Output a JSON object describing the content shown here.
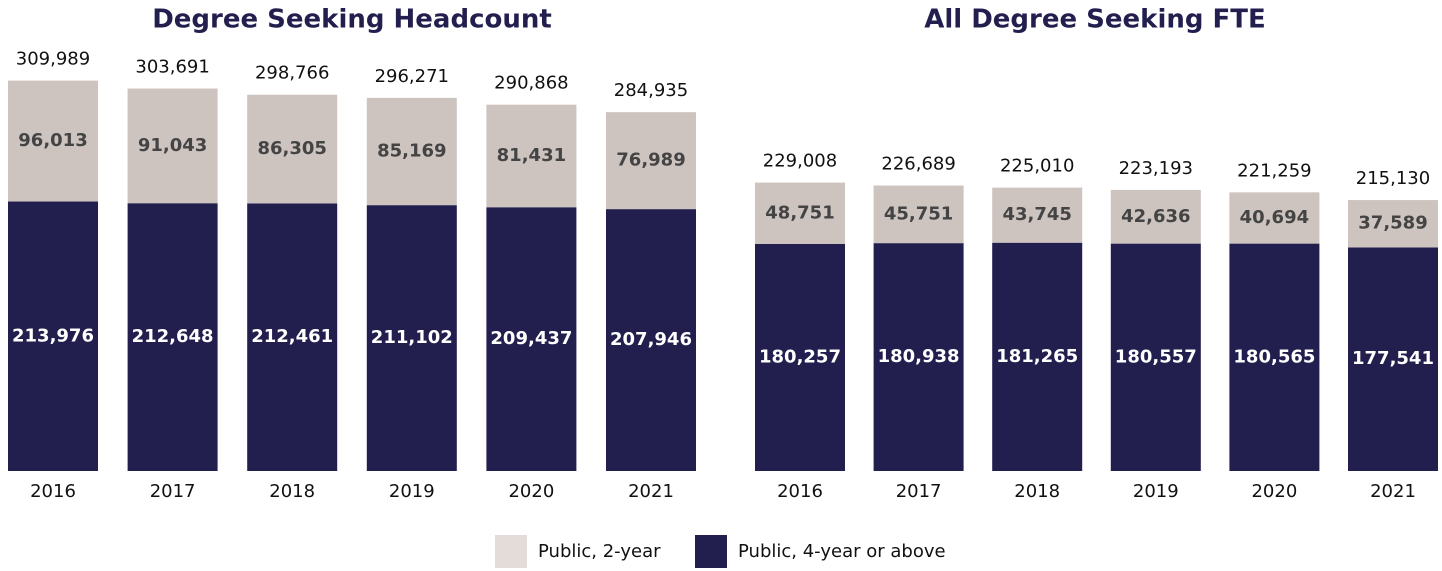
{
  "chart_data": [
    {
      "type": "stacked_bar",
      "title": "Degree Seeking Headcount",
      "categories": [
        "2016",
        "2017",
        "2018",
        "2019",
        "2020",
        "2021"
      ],
      "series": [
        {
          "name": "Public, 4-year or above",
          "color": "#221f4f",
          "values": [
            213976,
            212648,
            212461,
            211102,
            209437,
            207946
          ],
          "value_labels": [
            "213,976",
            "212,648",
            "212,461",
            "211,102",
            "209,437",
            "207,946"
          ]
        },
        {
          "name": "Public, 2-year",
          "color": "#cdc3bf",
          "values": [
            96013,
            91043,
            86305,
            85169,
            81431,
            76989
          ],
          "value_labels": [
            "96,013",
            "91,043",
            "86,305",
            "85,169",
            "81,431",
            "76,989"
          ]
        }
      ],
      "totals": [
        309989,
        303691,
        298766,
        296271,
        290868,
        284935
      ],
      "total_labels": [
        "309,989",
        "303,691",
        "298,766",
        "296,271",
        "290,868",
        "284,935"
      ],
      "ylim": [
        0,
        320000
      ]
    },
    {
      "type": "stacked_bar",
      "title": "All Degree Seeking FTE",
      "categories": [
        "2016",
        "2017",
        "2018",
        "2019",
        "2020",
        "2021"
      ],
      "series": [
        {
          "name": "Public, 4-year or above",
          "color": "#221f4f",
          "values": [
            180257,
            180938,
            181265,
            180557,
            180565,
            177541
          ],
          "value_labels": [
            "180,257",
            "180,938",
            "181,265",
            "180,557",
            "180,565",
            "177,541"
          ]
        },
        {
          "name": "Public, 2-year",
          "color": "#cdc3bf",
          "values": [
            48751,
            45751,
            43745,
            42636,
            40694,
            37589
          ],
          "value_labels": [
            "48,751",
            "45,751",
            "43,745",
            "42,636",
            "40,694",
            "37,589"
          ]
        }
      ],
      "totals": [
        229008,
        226689,
        225010,
        223193,
        221259,
        215130
      ],
      "total_labels": [
        "229,008",
        "226,689",
        "225,010",
        "223,193",
        "221,259",
        "215,130"
      ],
      "ylim": [
        0,
        320000
      ]
    }
  ]
}
